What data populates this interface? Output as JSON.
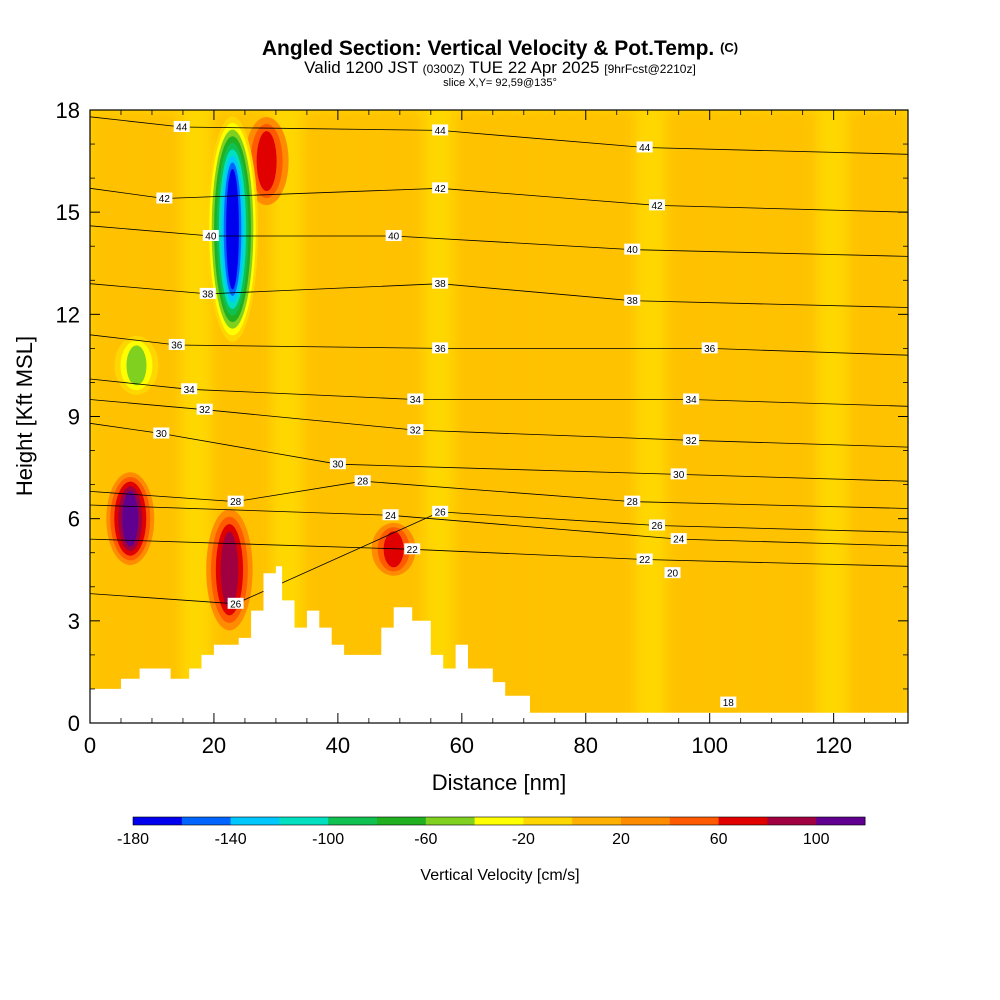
{
  "header": {
    "title": "Angled Section: Vertical Velocity & Pot.Temp.",
    "title_unit": "(C)",
    "valid_a": "Valid 1200 JST",
    "valid_b": "(0300Z)",
    "valid_c": "TUE 22 Apr 2025",
    "valid_d": "[9hrFcst@2210z]",
    "slice": "slice X,Y= 92,59@135°"
  },
  "chart_data": {
    "type": "heatmap",
    "title": "Angled Section: Vertical Velocity & Pot.Temp. (C)",
    "xlabel": "Distance [nm]",
    "ylabel": "Height [Kft MSL]",
    "xlim": [
      0,
      132
    ],
    "ylim": [
      0,
      18
    ],
    "x_ticks": [
      "0",
      "20",
      "40",
      "60",
      "80",
      "100",
      "120"
    ],
    "y_ticks": [
      "0",
      "3",
      "6",
      "9",
      "12",
      "15",
      "18"
    ],
    "colorbar": {
      "label": "Vertical Velocity [cm/s]",
      "tick_labels": [
        "-180",
        "-140",
        "-100",
        "-60",
        "-20",
        "20",
        "60",
        "100"
      ],
      "bounds": [
        -180,
        120
      ],
      "step": 20,
      "colors": [
        "#0000ee",
        "#0064ff",
        "#00c8ff",
        "#00e0c0",
        "#10c050",
        "#20b020",
        "#80d020",
        "#ffff00",
        "#ffd700",
        "#ffb000",
        "#ff8c00",
        "#ff5a00",
        "#e00000",
        "#a00040",
        "#600090"
      ]
    },
    "theta_contours": [
      {
        "label": "44",
        "x": 14.8,
        "y": 17.5
      },
      {
        "label": "44",
        "x": 56.5,
        "y": 17.4
      },
      {
        "label": "44",
        "x": 89.5,
        "y": 16.9
      },
      {
        "label": "42",
        "x": 12.0,
        "y": 15.4
      },
      {
        "label": "42",
        "x": 56.5,
        "y": 15.7
      },
      {
        "label": "42",
        "x": 91.5,
        "y": 15.2
      },
      {
        "label": "40",
        "x": 19.5,
        "y": 14.3
      },
      {
        "label": "40",
        "x": 49.0,
        "y": 14.3
      },
      {
        "label": "40",
        "x": 87.5,
        "y": 13.9
      },
      {
        "label": "38",
        "x": 19.0,
        "y": 12.6
      },
      {
        "label": "38",
        "x": 56.5,
        "y": 12.9
      },
      {
        "label": "38",
        "x": 87.5,
        "y": 12.4
      },
      {
        "label": "36",
        "x": 14.0,
        "y": 11.1
      },
      {
        "label": "36",
        "x": 56.5,
        "y": 11.0
      },
      {
        "label": "36",
        "x": 100.0,
        "y": 11.0
      },
      {
        "label": "34",
        "x": 16.0,
        "y": 9.8
      },
      {
        "label": "34",
        "x": 52.5,
        "y": 9.5
      },
      {
        "label": "34",
        "x": 97.0,
        "y": 9.5
      },
      {
        "label": "32",
        "x": 18.5,
        "y": 9.2
      },
      {
        "label": "32",
        "x": 52.5,
        "y": 8.6
      },
      {
        "label": "32",
        "x": 97.0,
        "y": 8.3
      },
      {
        "label": "30",
        "x": 11.5,
        "y": 8.5
      },
      {
        "label": "30",
        "x": 40.0,
        "y": 7.6
      },
      {
        "label": "30",
        "x": 95.0,
        "y": 7.3
      },
      {
        "label": "28",
        "x": 44.0,
        "y": 7.1
      },
      {
        "label": "28",
        "x": 87.5,
        "y": 6.5
      },
      {
        "label": "28",
        "x": 23.5,
        "y": 6.5
      },
      {
        "label": "26",
        "x": 56.5,
        "y": 6.2
      },
      {
        "label": "26",
        "x": 91.5,
        "y": 5.8
      },
      {
        "label": "24",
        "x": 48.5,
        "y": 6.1
      },
      {
        "label": "24",
        "x": 95.0,
        "y": 5.4
      },
      {
        "label": "22",
        "x": 52.0,
        "y": 5.1
      },
      {
        "label": "22",
        "x": 89.5,
        "y": 4.8
      },
      {
        "label": "20",
        "x": 94.0,
        "y": 4.4
      },
      {
        "label": "26",
        "x": 23.5,
        "y": 3.5
      },
      {
        "label": "18",
        "x": 103.0,
        "y": 0.6
      }
    ],
    "vertical_velocity_features": [
      {
        "x": 6.5,
        "ymin": 4.5,
        "ymax": 7.5,
        "peak": 110
      },
      {
        "x": 22.5,
        "ymin": 2.5,
        "ymax": 6.5,
        "peak": 80
      },
      {
        "x": 28.5,
        "ymin": 15.0,
        "ymax": 18.0,
        "peak": 70
      },
      {
        "x": 23.0,
        "ymin": 11.0,
        "ymax": 18.0,
        "peak": -180
      },
      {
        "x": 7.5,
        "ymin": 9.5,
        "ymax": 11.5,
        "peak": -60
      },
      {
        "x": 49.0,
        "ymin": 4.2,
        "ymax": 6.0,
        "peak": 60
      }
    ],
    "terrain_height": [
      {
        "x": 0,
        "y": 1.0
      },
      {
        "x": 5,
        "y": 1.3
      },
      {
        "x": 8,
        "y": 1.6
      },
      {
        "x": 13,
        "y": 1.3
      },
      {
        "x": 16,
        "y": 1.6
      },
      {
        "x": 18,
        "y": 2.0
      },
      {
        "x": 20,
        "y": 2.3
      },
      {
        "x": 24,
        "y": 2.5
      },
      {
        "x": 26,
        "y": 3.3
      },
      {
        "x": 28,
        "y": 4.4
      },
      {
        "x": 30,
        "y": 4.6
      },
      {
        "x": 31,
        "y": 3.6
      },
      {
        "x": 33,
        "y": 2.8
      },
      {
        "x": 35,
        "y": 3.3
      },
      {
        "x": 37,
        "y": 2.8
      },
      {
        "x": 39,
        "y": 2.3
      },
      {
        "x": 41,
        "y": 2.0
      },
      {
        "x": 45,
        "y": 2.0
      },
      {
        "x": 47,
        "y": 2.8
      },
      {
        "x": 49,
        "y": 3.4
      },
      {
        "x": 52,
        "y": 3.0
      },
      {
        "x": 55,
        "y": 2.0
      },
      {
        "x": 57,
        "y": 1.6
      },
      {
        "x": 59,
        "y": 2.3
      },
      {
        "x": 61,
        "y": 1.6
      },
      {
        "x": 65,
        "y": 1.2
      },
      {
        "x": 67,
        "y": 0.8
      },
      {
        "x": 71,
        "y": 0.3
      },
      {
        "x": 132,
        "y": 0.3
      }
    ]
  }
}
